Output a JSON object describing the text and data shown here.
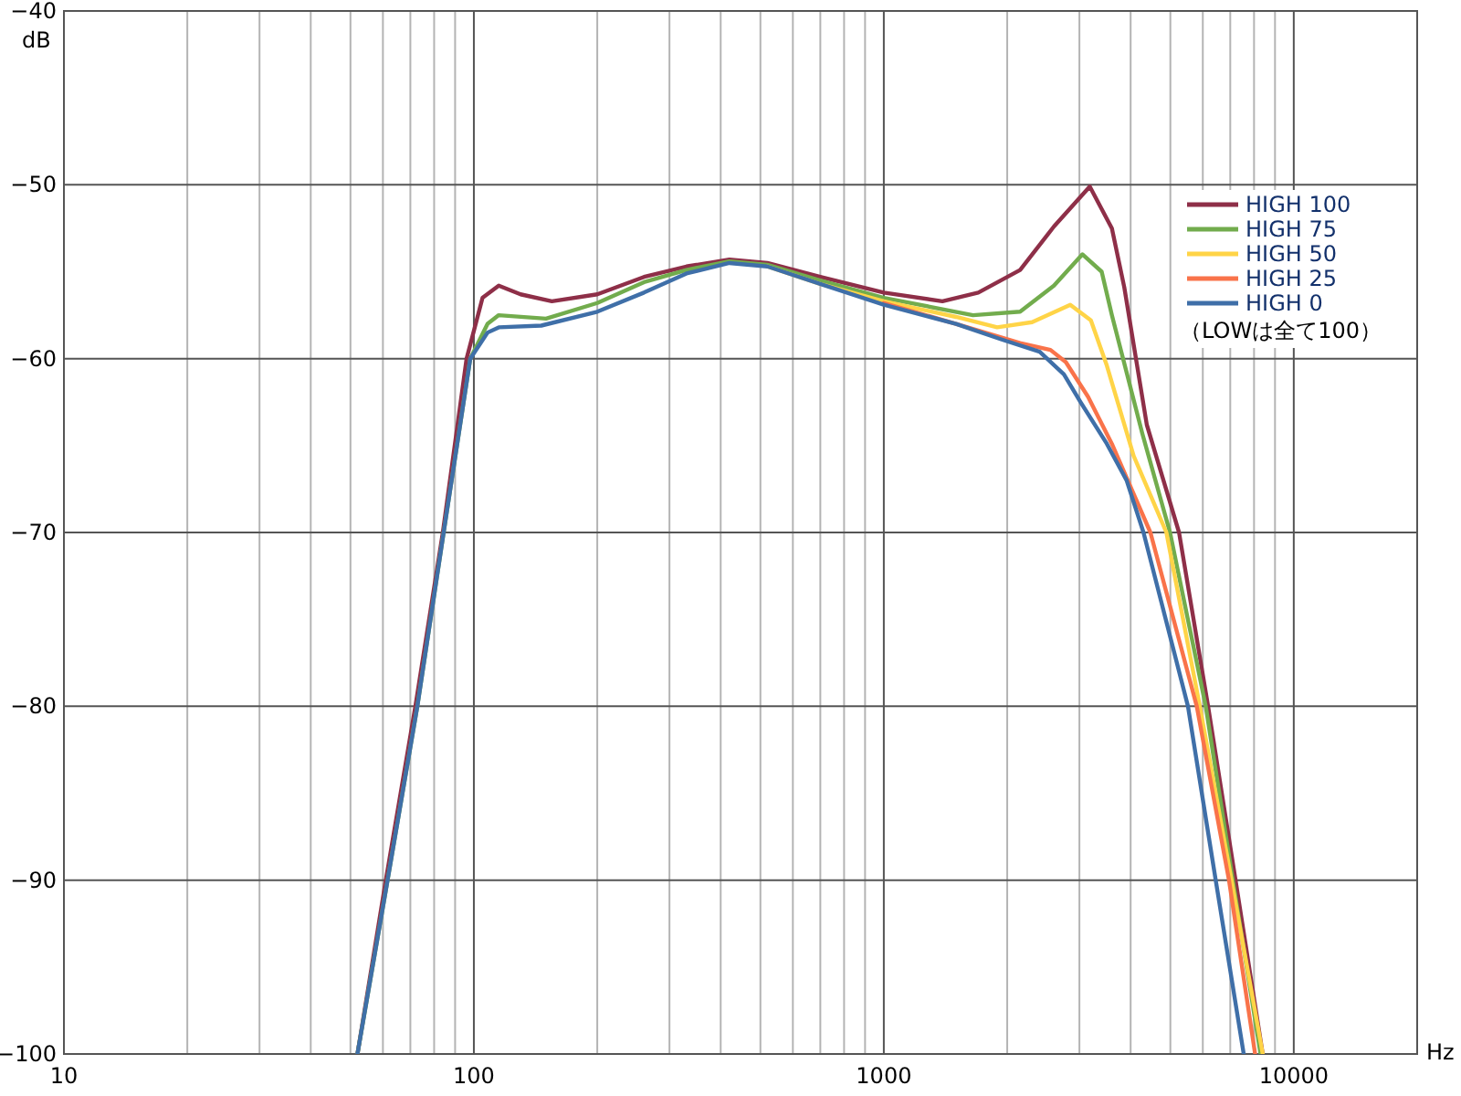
{
  "chart_data": {
    "type": "line",
    "xlabel": "Hz",
    "ylabel": "dB",
    "log": "x",
    "grid": true,
    "legend": "top right",
    "xlim": [
      10,
      20000
    ],
    "ylim": [
      -100,
      -40
    ],
    "xticks": [
      10,
      {
        "value": 20,
        "label": null
      },
      {
        "value": 30,
        "label": null
      },
      {
        "value": 40,
        "label": null
      },
      {
        "value": 50,
        "label": null
      },
      {
        "value": 60,
        "label": null
      },
      {
        "value": 70,
        "label": null
      },
      {
        "value": 80,
        "label": null
      },
      {
        "value": 90,
        "label": null
      },
      100,
      {
        "value": 200,
        "label": null
      },
      {
        "value": 300,
        "label": null
      },
      {
        "value": 400,
        "label": null
      },
      {
        "value": 500,
        "label": null
      },
      {
        "value": 600,
        "label": null
      },
      {
        "value": 700,
        "label": null
      },
      {
        "value": 800,
        "label": null
      },
      {
        "value": 900,
        "label": null
      },
      1000,
      {
        "value": 2000,
        "label": null
      },
      {
        "value": 3000,
        "label": null
      },
      {
        "value": 4000,
        "label": null
      },
      {
        "value": 5000,
        "label": null
      },
      {
        "value": 6000,
        "label": null
      },
      {
        "value": 7000,
        "label": null
      },
      {
        "value": 8000,
        "label": null
      },
      {
        "value": 9000,
        "label": null
      },
      10000
    ],
    "yticks": [
      -100,
      -90,
      -80,
      -70,
      -60,
      -50,
      -40
    ],
    "annotations": [
      "（LOWは全て100）"
    ],
    "series": [
      {
        "name": "HIGH 100",
        "color": "#8e2f48",
        "x": [
          52,
          61,
          72,
          84,
          96,
          105,
          115,
          130,
          155,
          200,
          260,
          330,
          420,
          520,
          700,
          1000,
          1390,
          1700,
          2150,
          2600,
          3180,
          3600,
          3860,
          4380,
          5250,
          6180,
          7210,
          8400
        ],
        "values": [
          -100,
          -90,
          -80,
          -70,
          -60,
          -56.5,
          -55.8,
          -56.3,
          -56.7,
          -56.3,
          -55.3,
          -54.7,
          -54.3,
          -54.5,
          -55.3,
          -56.2,
          -56.7,
          -56.2,
          -54.9,
          -52.4,
          -50.1,
          -52.5,
          -55.9,
          -63.8,
          -70,
          -80,
          -90,
          -100
        ]
      },
      {
        "name": "HIGH 75",
        "color": "#72ac4d",
        "x": [
          52,
          61.6,
          72.8,
          84.4,
          98,
          108,
          115,
          150,
          200,
          260,
          330,
          420,
          520,
          700,
          1000,
          1650,
          2150,
          2600,
          3050,
          3400,
          3600,
          4270,
          4990,
          6100,
          7100,
          8300
        ],
        "values": [
          -100,
          -90,
          -80,
          -70,
          -60,
          -58,
          -57.5,
          -57.7,
          -56.8,
          -55.6,
          -54.9,
          -54.4,
          -54.6,
          -55.5,
          -56.5,
          -57.5,
          -57.3,
          -55.8,
          -54,
          -55,
          -57.5,
          -64.3,
          -70,
          -80,
          -90,
          -100
        ]
      },
      {
        "name": "HIGH 50",
        "color": "#ffd447",
        "x": [
          520,
          700,
          1000,
          1500,
          1890,
          2300,
          2850,
          3200,
          3500,
          4070,
          4890,
          5900,
          7050,
          8400
        ],
        "values": [
          -54.7,
          -55.7,
          -56.7,
          -57.6,
          -58.2,
          -57.9,
          -56.9,
          -57.8,
          -60.4,
          -65.6,
          -70,
          -80,
          -90,
          -100
        ]
      },
      {
        "name": "HIGH 25",
        "color": "#f9734a",
        "x": [
          1000,
          1500,
          2150,
          2550,
          2780,
          3150,
          3600,
          4470,
          5800,
          6950,
          8050
        ],
        "values": [
          -56.8,
          -58,
          -59.1,
          -59.5,
          -60.2,
          -62.2,
          -64.9,
          -70,
          -80,
          -90,
          -100
        ]
      },
      {
        "name": "HIGH 0",
        "color": "#3f6fa8",
        "x": [
          52,
          61.6,
          72.8,
          84.4,
          98,
          108,
          115,
          146,
          200,
          260,
          330,
          420,
          520,
          700,
          1000,
          1500,
          1940,
          2400,
          2750,
          3020,
          3500,
          3910,
          4300,
          5520,
          6450,
          7550
        ],
        "values": [
          -100,
          -90,
          -80,
          -70,
          -60,
          -58.5,
          -58.2,
          -58.1,
          -57.3,
          -56.2,
          -55.1,
          -54.5,
          -54.7,
          -55.7,
          -56.9,
          -58,
          -58.9,
          -59.6,
          -60.9,
          -62.5,
          -64.9,
          -67,
          -70,
          -80,
          -90,
          -100
        ]
      }
    ]
  }
}
